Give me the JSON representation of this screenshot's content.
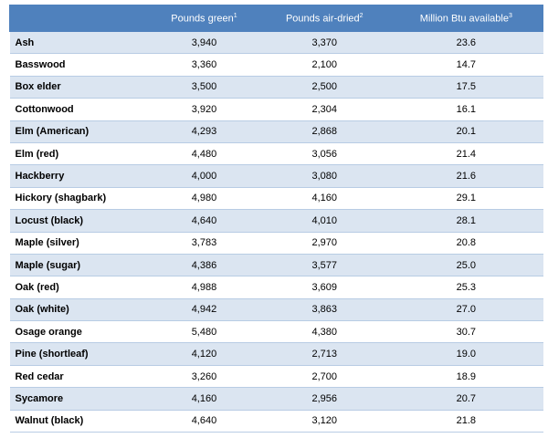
{
  "table": {
    "headers": [
      {
        "text": "Pounds green",
        "sup": "1"
      },
      {
        "text": "Pounds air-dried",
        "sup": "2"
      },
      {
        "text": "Million Btu available",
        "sup": "3"
      }
    ],
    "rows": [
      [
        "Ash",
        "3,940",
        "3,370",
        "23.6"
      ],
      [
        "Basswood",
        "3,360",
        "2,100",
        "14.7"
      ],
      [
        "Box elder",
        "3,500",
        "2,500",
        "17.5"
      ],
      [
        "Cottonwood",
        "3,920",
        "2,304",
        "16.1"
      ],
      [
        "Elm (American)",
        "4,293",
        "2,868",
        "20.1"
      ],
      [
        "Elm (red)",
        "4,480",
        "3,056",
        "21.4"
      ],
      [
        "Hackberry",
        "4,000",
        "3,080",
        "21.6"
      ],
      [
        "Hickory (shagbark)",
        "4,980",
        "4,160",
        "29.1"
      ],
      [
        "Locust (black)",
        "4,640",
        "4,010",
        "28.1"
      ],
      [
        "Maple (silver)",
        "3,783",
        "2,970",
        "20.8"
      ],
      [
        "Maple (sugar)",
        "4,386",
        "3,577",
        "25.0"
      ],
      [
        "Oak (red)",
        "4,988",
        "3,609",
        "25.3"
      ],
      [
        "Oak (white)",
        "4,942",
        "3,863",
        "27.0"
      ],
      [
        "Osage orange",
        "5,480",
        "4,380",
        "30.7"
      ],
      [
        "Pine (shortleaf)",
        "4,120",
        "2,713",
        "19.0"
      ],
      [
        "Red cedar",
        "3,260",
        "2,700",
        "18.9"
      ],
      [
        "Sycamore",
        "4,160",
        "2,956",
        "20.7"
      ],
      [
        "Walnut (black)",
        "4,640",
        "3,120",
        "21.8"
      ]
    ]
  }
}
